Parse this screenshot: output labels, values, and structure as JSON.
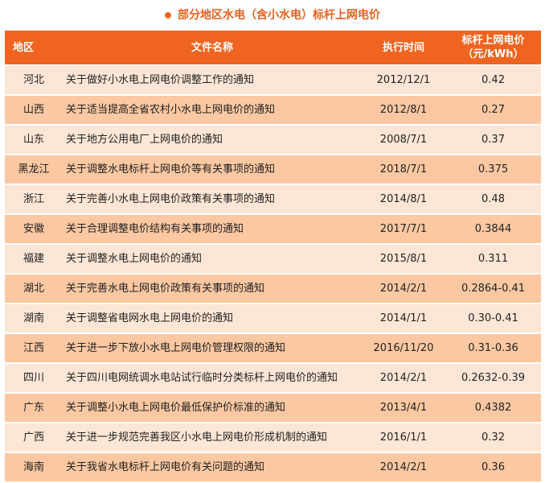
{
  "title": "部分地区水电（含小水电）标杆上网电价",
  "colors": {
    "header": "#ef6420",
    "row_light": "#fde6d5",
    "row_dark": "#fbc8a2",
    "title": "#e8601c"
  },
  "headers": [
    "地区",
    "文件名称",
    "执行时间",
    "标杆上网电价（元/kWh）"
  ],
  "rows": [
    [
      "河北",
      "关于做好小水电上网电价调整工作的通知",
      "2012/12/1",
      "0.42"
    ],
    [
      "山西",
      "关于适当提高全省农村小水电上网电价的通知",
      "2012/8/1",
      "0.27"
    ],
    [
      "山东",
      "关于地方公用电厂上网电价的通知",
      "2008/7/1",
      "0.37"
    ],
    [
      "黑龙江",
      "关于调整水电标杆上网电价等有关事项的通知",
      "2018/7/1",
      "0.375"
    ],
    [
      "浙江",
      "关于完善小水电上网电价政策有关事项的通知",
      "2014/8/1",
      "0.48"
    ],
    [
      "安徽",
      "关于合理调整电价结构有关事项的通知",
      "2017/7/1",
      "0.3844"
    ],
    [
      "福建",
      "关于调整水电上网电价的通知",
      "2015/8/1",
      "0.311"
    ],
    [
      "湖北",
      "关于完善水电上网电价政策有关事项的通知",
      "2014/2/1",
      "0.2864-0.41"
    ],
    [
      "湖南",
      "关于调整省电网水电上网电价的通知",
      "2014/1/1",
      "0.30-0.41"
    ],
    [
      "江西",
      "关于进一步下放小水电上网电价管理权限的通知",
      "2016/11/20",
      "0.31-0.36"
    ],
    [
      "四川",
      "关于四川电网统调水电站试行临时分类标杆上网电价的通知",
      "2014/2/1",
      "0.2632-0.39"
    ],
    [
      "广东",
      "关于调整小水电上网电价最低保护价标准的通知",
      "2013/4/1",
      "0.4382"
    ],
    [
      "广西",
      "关于进一步规范完善我区小水电上网电价形成机制的通知",
      "2016/1/1",
      "0.32"
    ],
    [
      "海南",
      "关于我省水电标杆上网电价有关问题的通知",
      "2014/2/1",
      "0.36"
    ]
  ]
}
